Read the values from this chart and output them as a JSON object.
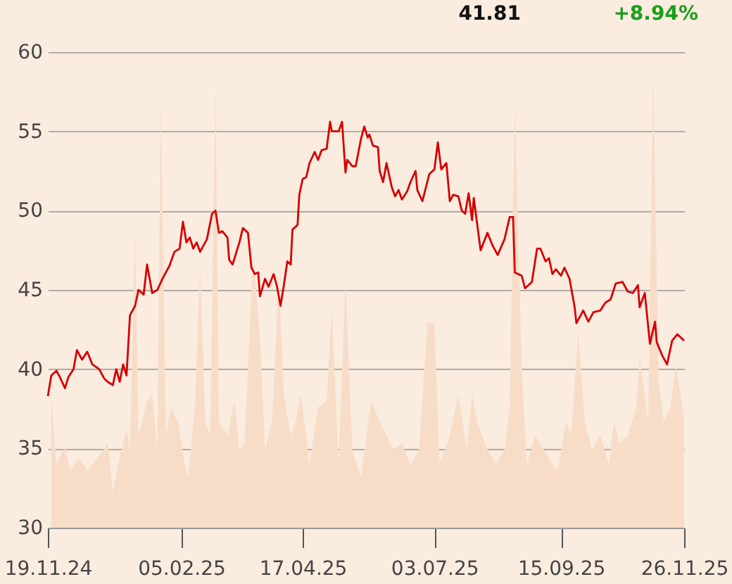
{
  "chart_data": {
    "type": "line",
    "annotations": [
      "41.81",
      "+8.94%"
    ],
    "xlim": [
      "2024-11-19",
      "2025-11-26"
    ],
    "xticks": [
      {
        "value": "2024-11-19",
        "label": "19.11.24"
      },
      {
        "value": "2025-02-05",
        "label": "05.02.25"
      },
      {
        "value": "2025-04-17",
        "label": "17.04.25"
      },
      {
        "value": "2025-07-03",
        "label": "03.07.25"
      },
      {
        "value": "2025-09-15",
        "label": "15.09.25"
      },
      {
        "value": "2025-11-26",
        "label": "26.11.25"
      }
    ],
    "ylim": [
      30,
      60
    ],
    "yticks": [
      30,
      35,
      40,
      45,
      50,
      55,
      60
    ],
    "grid": "y",
    "series": [
      {
        "type": "area",
        "color": "#f7dcc7",
        "x": [
          "2024-11-21",
          "2024-11-24",
          "2024-11-29",
          "2024-12-02",
          "2024-12-07",
          "2024-12-12",
          "2024-12-19",
          "2024-12-24",
          "2024-12-27",
          "2024-12-30",
          "2025-01-04",
          "2025-01-06",
          "2025-01-09",
          "2025-01-11",
          "2025-01-16",
          "2025-01-19",
          "2025-01-22",
          "2025-01-24",
          "2025-01-27",
          "2025-01-30",
          "2025-02-03",
          "2025-02-07",
          "2025-02-09",
          "2025-02-13",
          "2025-02-16",
          "2025-02-19",
          "2025-02-22",
          "2025-02-25",
          "2025-02-27",
          "2025-03-04",
          "2025-03-08",
          "2025-03-11",
          "2025-03-14",
          "2025-03-19",
          "2025-03-23",
          "2025-03-26",
          "2025-03-30",
          "2025-04-03",
          "2025-04-06",
          "2025-04-10",
          "2025-04-13",
          "2025-04-16",
          "2025-04-21",
          "2025-04-26",
          "2025-05-01",
          "2025-05-04",
          "2025-05-08",
          "2025-05-12",
          "2025-05-16",
          "2025-05-21",
          "2025-05-27",
          "2025-06-01",
          "2025-06-05",
          "2025-06-09",
          "2025-06-14",
          "2025-06-19",
          "2025-06-24",
          "2025-06-29",
          "2025-07-03",
          "2025-07-06",
          "2025-07-09",
          "2025-07-12",
          "2025-07-17",
          "2025-07-22",
          "2025-07-25",
          "2025-07-28",
          "2025-08-03",
          "2025-08-08",
          "2025-08-13",
          "2025-08-16",
          "2025-08-19",
          "2025-08-23",
          "2025-08-26",
          "2025-08-31",
          "2025-09-05",
          "2025-09-10",
          "2025-09-13",
          "2025-09-18",
          "2025-09-21",
          "2025-09-25",
          "2025-09-29",
          "2025-10-03",
          "2025-10-08",
          "2025-10-13",
          "2025-10-16",
          "2025-10-19",
          "2025-10-24",
          "2025-10-29",
          "2025-10-31",
          "2025-11-05",
          "2025-11-08",
          "2025-11-11",
          "2025-11-14",
          "2025-11-18",
          "2025-11-21",
          "2025-11-24",
          "2025-11-26"
        ],
        "values": [
          38.4,
          34.0,
          35.1,
          33.6,
          34.4,
          33.6,
          34.5,
          35.3,
          32.2,
          34.0,
          36.2,
          34.9,
          48.6,
          35.8,
          38.0,
          38.4,
          34.9,
          57.1,
          35.8,
          37.6,
          36.7,
          34.0,
          33.1,
          37.6,
          46.4,
          36.7,
          35.8,
          57.8,
          36.7,
          35.8,
          38.0,
          34.9,
          35.3,
          47.3,
          42.0,
          34.9,
          36.7,
          45.5,
          38.4,
          35.8,
          36.7,
          38.4,
          34.0,
          37.6,
          38.0,
          43.8,
          34.0,
          45.5,
          34.9,
          33.1,
          38.0,
          36.7,
          35.8,
          34.9,
          35.3,
          34.0,
          34.9,
          42.9,
          42.9,
          34.0,
          34.9,
          35.8,
          38.4,
          34.9,
          38.4,
          36.7,
          34.9,
          34.0,
          34.9,
          37.6,
          56.6,
          40.2,
          34.0,
          35.8,
          34.9,
          34.0,
          33.6,
          36.7,
          35.8,
          42.4,
          36.7,
          34.9,
          35.8,
          34.0,
          36.7,
          35.3,
          35.8,
          37.6,
          40.7,
          36.7,
          58.7,
          39.3,
          36.7,
          37.6,
          40.2,
          38.4,
          36.7
        ]
      },
      {
        "color": "#d40000",
        "x": [
          "2024-11-19",
          "2024-11-21",
          "2024-11-24",
          "2024-11-26",
          "2024-11-29",
          "2024-12-01",
          "2024-12-04",
          "2024-12-06",
          "2024-12-09",
          "2024-12-12",
          "2024-12-15",
          "2024-12-19",
          "2024-12-22",
          "2024-12-24",
          "2024-12-27",
          "2024-12-29",
          "2024-12-31",
          "2025-01-02",
          "2025-01-04",
          "2025-01-06",
          "2025-01-09",
          "2025-01-11",
          "2025-01-14",
          "2025-01-16",
          "2025-01-19",
          "2025-01-22",
          "2025-01-25",
          "2025-01-29",
          "2025-02-01",
          "2025-02-04",
          "2025-02-06",
          "2025-02-08",
          "2025-02-10",
          "2025-02-12",
          "2025-02-14",
          "2025-02-16",
          "2025-02-20",
          "2025-02-23",
          "2025-02-25",
          "2025-02-27",
          "2025-03-01",
          "2025-03-04",
          "2025-03-05",
          "2025-03-07",
          "2025-03-11",
          "2025-03-13",
          "2025-03-16",
          "2025-03-18",
          "2025-03-20",
          "2025-03-22",
          "2025-03-23",
          "2025-03-26",
          "2025-03-28",
          "2025-03-31",
          "2025-04-02",
          "2025-04-04",
          "2025-04-06",
          "2025-04-08",
          "2025-04-10",
          "2025-04-11",
          "2025-04-14",
          "2025-04-15",
          "2025-04-17",
          "2025-04-19",
          "2025-04-21",
          "2025-04-24",
          "2025-04-26",
          "2025-04-28",
          "2025-05-01",
          "2025-05-03",
          "2025-05-04",
          "2025-05-08",
          "2025-05-10",
          "2025-05-12",
          "2025-05-13",
          "2025-05-16",
          "2025-05-18",
          "2025-05-21",
          "2025-05-23",
          "2025-05-25",
          "2025-05-26",
          "2025-05-28",
          "2025-05-31",
          "2025-06-01",
          "2025-06-03",
          "2025-06-05",
          "2025-06-08",
          "2025-06-10",
          "2025-06-12",
          "2025-06-14",
          "2025-06-17",
          "2025-06-19",
          "2025-06-22",
          "2025-06-23",
          "2025-06-26",
          "2025-06-30",
          "2025-07-03",
          "2025-07-05",
          "2025-07-07",
          "2025-07-10",
          "2025-07-12",
          "2025-07-14",
          "2025-07-17",
          "2025-07-19",
          "2025-07-21",
          "2025-07-23",
          "2025-07-25",
          "2025-07-26",
          "2025-07-30",
          "2025-08-03",
          "2025-08-06",
          "2025-08-09",
          "2025-08-13",
          "2025-08-16",
          "2025-08-18",
          "2025-08-19",
          "2025-08-23",
          "2025-08-25",
          "2025-08-29",
          "2025-09-01",
          "2025-09-03",
          "2025-09-06",
          "2025-09-08",
          "2025-09-10",
          "2025-09-12",
          "2025-09-15",
          "2025-09-17",
          "2025-09-20",
          "2025-09-23",
          "2025-09-24",
          "2025-09-28",
          "2025-10-01",
          "2025-10-04",
          "2025-10-08",
          "2025-10-11",
          "2025-10-14",
          "2025-10-17",
          "2025-10-21",
          "2025-10-24",
          "2025-10-27",
          "2025-10-30",
          "2025-10-31",
          "2025-11-03",
          "2025-11-06",
          "2025-11-09",
          "2025-11-10",
          "2025-11-13",
          "2025-11-16",
          "2025-11-19",
          "2025-11-22",
          "2025-11-26"
        ],
        "values": [
          38.3,
          39.6,
          39.9,
          39.5,
          38.8,
          39.5,
          40.0,
          41.2,
          40.6,
          41.1,
          40.3,
          40.0,
          39.4,
          39.2,
          39.0,
          40.0,
          39.2,
          40.3,
          39.6,
          43.4,
          44.0,
          45.0,
          44.7,
          46.6,
          44.8,
          45.0,
          45.7,
          46.5,
          47.4,
          47.6,
          49.3,
          48.0,
          48.3,
          47.6,
          48.0,
          47.4,
          48.2,
          49.8,
          50.0,
          48.6,
          48.7,
          48.3,
          46.9,
          46.6,
          48.0,
          48.9,
          48.6,
          46.4,
          46.0,
          46.1,
          44.6,
          45.7,
          45.2,
          46.0,
          45.2,
          44.0,
          45.3,
          46.8,
          46.6,
          48.8,
          49.1,
          51.0,
          52.0,
          52.1,
          53.0,
          53.7,
          53.2,
          53.8,
          53.9,
          55.6,
          55.0,
          55.0,
          55.6,
          52.4,
          53.2,
          52.8,
          52.8,
          54.5,
          55.3,
          54.6,
          54.8,
          54.1,
          54.0,
          52.5,
          51.8,
          53.0,
          51.5,
          50.9,
          51.3,
          50.7,
          51.2,
          51.8,
          52.5,
          51.3,
          50.6,
          52.3,
          52.6,
          54.3,
          52.6,
          53.0,
          50.6,
          51.0,
          50.9,
          50.0,
          49.8,
          51.1,
          49.4,
          50.8,
          47.5,
          48.6,
          47.8,
          47.2,
          48.2,
          49.6,
          49.6,
          46.1,
          45.9,
          45.1,
          45.5,
          47.6,
          47.6,
          46.8,
          47.0,
          46.0,
          46.3,
          45.9,
          46.4,
          45.7,
          43.9,
          42.9,
          43.7,
          43.0,
          43.6,
          43.7,
          44.2,
          44.4,
          45.4,
          45.5,
          44.9,
          44.8,
          45.3,
          43.9,
          44.8,
          41.6,
          43.0,
          41.7,
          40.9,
          40.3,
          41.8,
          42.2,
          41.8
        ]
      }
    ]
  }
}
